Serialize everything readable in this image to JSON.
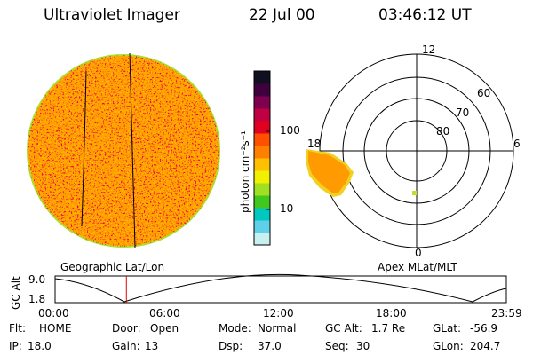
{
  "header": {
    "instrument": "Ultraviolet Imager",
    "date": "22 Jul 00",
    "time": "03:46:12 UT"
  },
  "colorbar": {
    "unit_label": "photon cm⁻²s⁻¹",
    "ticks": [
      "100",
      "10"
    ],
    "colors": [
      "#c8f0f0",
      "#60d0e8",
      "#00c8c0",
      "#40c820",
      "#a0e020",
      "#f0f000",
      "#ffc000",
      "#ff8000",
      "#ff5000",
      "#e00020",
      "#c00040",
      "#800050",
      "#400040",
      "#101020"
    ]
  },
  "left_panel": {
    "label": "Geographic Lat/Lon"
  },
  "right_panel": {
    "label": "Apex MLat/MLT",
    "mlt_labels": [
      "12",
      "18",
      "6",
      "0"
    ],
    "mlat_labels": [
      "60",
      "70",
      "80"
    ]
  },
  "timeline": {
    "ylabel": "GC Alt",
    "y_ticks": [
      "9.0",
      "1.8"
    ],
    "x_ticks": [
      "00:00",
      "06:00",
      "12:00",
      "18:00",
      "23:59"
    ],
    "current_time_fraction": 0.158
  },
  "info": {
    "flt_label": "Flt:",
    "flt_value": "HOME",
    "door_label": "Door:",
    "door_value": "Open",
    "mode_label": "Mode:",
    "mode_value": "Normal",
    "gcalt_label": "GC Alt:",
    "gcalt_value": "1.7 Re",
    "glat_label": "GLat:",
    "glat_value": "-56.9",
    "ip_label": "IP:",
    "ip_value": "18.0",
    "gain_label": "Gain:",
    "gain_value": "13",
    "dsp_label": "Dsp:",
    "dsp_value": "37.0",
    "seq_label": "Seq:",
    "seq_value": "30",
    "glon_label": "GLon:",
    "glon_value": "204.7"
  }
}
